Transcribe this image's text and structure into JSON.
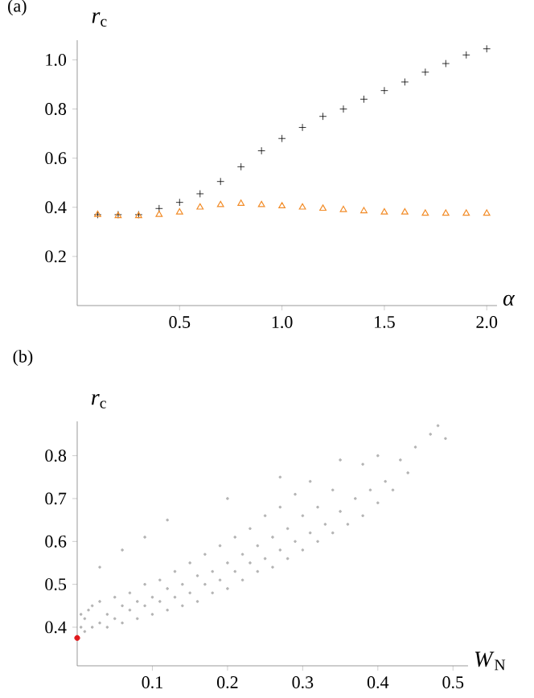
{
  "chart_data": [
    {
      "type": "scatter",
      "title": "(a)",
      "xlabel": "*α*",
      "ylabel": "*r*$_{c}$",
      "xlim": [
        0,
        2.05
      ],
      "ylim": [
        0,
        1.08
      ],
      "xticks": [
        0.5,
        {
          "value": 1,
          "label": "1.0"
        },
        1.5,
        {
          "value": 2,
          "label": "2.0"
        }
      ],
      "yticks": [
        0.2,
        0.4,
        0.6,
        0.8,
        {
          "value": 1,
          "label": "1.0"
        }
      ],
      "grid": false,
      "series": [
        {
          "color": "#000000",
          "marker": "cross",
          "x": [
            0.1,
            0.2,
            0.3,
            0.4,
            0.5,
            0.6,
            0.7,
            0.8,
            0.9,
            1.0,
            1.1,
            1.2,
            1.3,
            1.4,
            1.5,
            1.6,
            1.7,
            1.8,
            1.9,
            2.0
          ],
          "values": [
            0.37,
            0.37,
            0.37,
            0.395,
            0.42,
            0.455,
            0.505,
            0.565,
            0.63,
            0.68,
            0.725,
            0.77,
            0.8,
            0.84,
            0.875,
            0.91,
            0.95,
            0.985,
            1.02,
            1.045
          ]
        },
        {
          "color": "#f28c28",
          "marker": "triangle",
          "x": [
            0.1,
            0.2,
            0.3,
            0.4,
            0.5,
            0.6,
            0.7,
            0.8,
            0.9,
            1.0,
            1.1,
            1.2,
            1.3,
            1.4,
            1.5,
            1.6,
            1.7,
            1.8,
            1.9,
            2.0
          ],
          "values": [
            0.37,
            0.365,
            0.365,
            0.37,
            0.38,
            0.4,
            0.41,
            0.415,
            0.41,
            0.405,
            0.4,
            0.395,
            0.39,
            0.385,
            0.38,
            0.38,
            0.375,
            0.375,
            0.375,
            0.375
          ]
        }
      ]
    },
    {
      "type": "scatter",
      "title": "(b)",
      "xlabel": "*W*$_{N}$",
      "ylabel": "*r*$_{c}$",
      "xlim": [
        0,
        0.52
      ],
      "ylim": [
        0.31,
        0.88
      ],
      "xticks": [
        0.1,
        0.2,
        0.3,
        0.4,
        0.5
      ],
      "yticks": [
        0.4,
        0.5,
        0.6,
        0.7,
        0.8
      ],
      "grid": false,
      "series": [
        {
          "color": "#b4b4b4",
          "marker": "circle",
          "x": [
            0.005,
            0.005,
            0.01,
            0.01,
            0.015,
            0.02,
            0.02,
            0.03,
            0.03,
            0.04,
            0.04,
            0.05,
            0.05,
            0.06,
            0.06,
            0.07,
            0.07,
            0.08,
            0.08,
            0.09,
            0.09,
            0.1,
            0.1,
            0.11,
            0.11,
            0.12,
            0.12,
            0.13,
            0.13,
            0.14,
            0.14,
            0.15,
            0.15,
            0.16,
            0.16,
            0.17,
            0.17,
            0.18,
            0.18,
            0.19,
            0.19,
            0.2,
            0.2,
            0.21,
            0.21,
            0.22,
            0.22,
            0.23,
            0.23,
            0.24,
            0.24,
            0.25,
            0.25,
            0.26,
            0.26,
            0.27,
            0.27,
            0.28,
            0.28,
            0.29,
            0.29,
            0.3,
            0.3,
            0.31,
            0.31,
            0.32,
            0.32,
            0.33,
            0.34,
            0.34,
            0.35,
            0.35,
            0.36,
            0.37,
            0.38,
            0.38,
            0.39,
            0.4,
            0.4,
            0.41,
            0.42,
            0.43,
            0.44,
            0.45,
            0.47,
            0.48,
            0.49,
            0.03,
            0.06,
            0.12,
            0.09,
            0.2,
            0.27
          ],
          "values": [
            0.4,
            0.43,
            0.39,
            0.42,
            0.44,
            0.4,
            0.45,
            0.41,
            0.46,
            0.4,
            0.43,
            0.42,
            0.47,
            0.41,
            0.45,
            0.44,
            0.48,
            0.42,
            0.46,
            0.45,
            0.5,
            0.43,
            0.47,
            0.46,
            0.51,
            0.44,
            0.49,
            0.47,
            0.53,
            0.45,
            0.5,
            0.48,
            0.55,
            0.46,
            0.52,
            0.5,
            0.57,
            0.48,
            0.53,
            0.51,
            0.59,
            0.49,
            0.55,
            0.53,
            0.61,
            0.51,
            0.57,
            0.55,
            0.63,
            0.53,
            0.59,
            0.56,
            0.66,
            0.54,
            0.61,
            0.58,
            0.68,
            0.56,
            0.63,
            0.6,
            0.71,
            0.58,
            0.66,
            0.62,
            0.74,
            0.6,
            0.68,
            0.64,
            0.62,
            0.72,
            0.67,
            0.79,
            0.64,
            0.7,
            0.66,
            0.78,
            0.72,
            0.69,
            0.8,
            0.74,
            0.72,
            0.79,
            0.76,
            0.82,
            0.85,
            0.87,
            0.84,
            0.54,
            0.58,
            0.65,
            0.61,
            0.7,
            0.75
          ]
        },
        {
          "color": "#e0181c",
          "marker": "circle",
          "x": [
            0
          ],
          "values": [
            0.375
          ]
        }
      ]
    }
  ]
}
